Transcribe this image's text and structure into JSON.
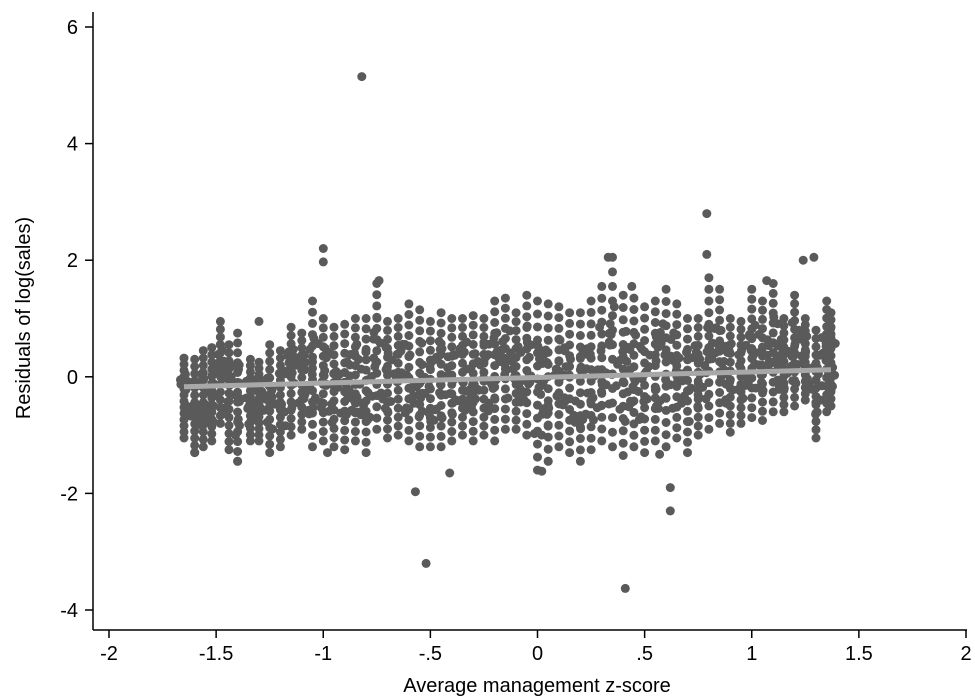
{
  "chart_data": {
    "type": "scatter",
    "title": "",
    "xlabel": "Average management z-score",
    "ylabel": "Residuals of log(sales)",
    "xlim": [
      -2,
      2
    ],
    "ylim": [
      -4,
      6
    ],
    "xticks": [
      {
        "value": -2,
        "label": "-2"
      },
      {
        "value": -1.5,
        "label": "-1.5"
      },
      {
        "value": -1,
        "label": "-1"
      },
      {
        "value": -0.5,
        "label": "-.5"
      },
      {
        "value": 0,
        "label": "0"
      },
      {
        "value": 0.5,
        "label": ".5"
      },
      {
        "value": 1,
        "label": "1"
      },
      {
        "value": 1.5,
        "label": "1.5"
      },
      {
        "value": 2,
        "label": "2"
      }
    ],
    "yticks": [
      {
        "value": -4,
        "label": "-4"
      },
      {
        "value": -2,
        "label": "-2"
      },
      {
        "value": 0,
        "label": "0"
      },
      {
        "value": 2,
        "label": "2"
      },
      {
        "value": 4,
        "label": "4"
      },
      {
        "value": 6,
        "label": "6"
      }
    ],
    "grid": false,
    "legend": "none",
    "colors": {
      "points": "#5a5a5a",
      "fit_line": "#a8a8a8",
      "axes": "#000000"
    },
    "series": [
      {
        "kind": "scatter",
        "points": [
          [
            -0.82,
            5.15
          ],
          [
            -0.57,
            -1.97
          ],
          [
            -0.52,
            -3.2
          ],
          [
            0.41,
            -3.63
          ],
          [
            0.79,
            2.8
          ],
          [
            0.62,
            -1.9
          ],
          [
            0.62,
            -2.3
          ],
          [
            -1.0,
            2.2
          ],
          [
            -1.0,
            1.97
          ],
          [
            0.33,
            2.05
          ],
          [
            1.29,
            2.05
          ],
          [
            1.24,
            2.0
          ],
          [
            0.79,
            2.1
          ],
          [
            -0.41,
            -1.65
          ],
          [
            0.02,
            -1.62
          ],
          [
            -1.4,
            -1.45
          ],
          [
            0.05,
            -1.45
          ],
          [
            -1.6,
            -1.3
          ],
          [
            0.57,
            -1.33
          ],
          [
            -0.98,
            -1.3
          ],
          [
            -1.3,
            0.95
          ],
          [
            1.07,
            1.65
          ],
          [
            -0.74,
            1.65
          ],
          [
            0.44,
            1.55
          ]
        ]
      },
      {
        "kind": "band",
        "columns": [
          [
            -1.65,
            -1.05,
            0.32
          ],
          [
            -1.6,
            -1.3,
            0.3
          ],
          [
            -1.56,
            -1.2,
            0.45
          ],
          [
            -1.52,
            -1.1,
            0.5
          ],
          [
            -1.48,
            -0.8,
            0.95
          ],
          [
            -1.44,
            -1.25,
            0.55
          ],
          [
            -1.4,
            -1.45,
            0.75
          ],
          [
            -1.34,
            -1.1,
            0.3
          ],
          [
            -1.3,
            -1.1,
            0.25
          ],
          [
            -1.25,
            -1.3,
            0.55
          ],
          [
            -1.2,
            -1.2,
            0.45
          ],
          [
            -1.15,
            -1.0,
            0.85
          ],
          [
            -1.1,
            -0.9,
            0.75
          ],
          [
            -1.05,
            -1.2,
            1.3
          ],
          [
            -1.0,
            -1.1,
            1.0
          ],
          [
            -0.95,
            -1.2,
            0.85
          ],
          [
            -0.9,
            -1.25,
            0.9
          ],
          [
            -0.85,
            -1.1,
            1.0
          ],
          [
            -0.8,
            -1.3,
            1.0
          ],
          [
            -0.75,
            -0.9,
            1.6
          ],
          [
            -0.7,
            -1.05,
            0.95
          ],
          [
            -0.65,
            -1.0,
            1.0
          ],
          [
            -0.6,
            -1.1,
            1.25
          ],
          [
            -0.55,
            -1.2,
            1.15
          ],
          [
            -0.5,
            -1.2,
            0.95
          ],
          [
            -0.45,
            -1.2,
            1.1
          ],
          [
            -0.4,
            -1.1,
            1.0
          ],
          [
            -0.35,
            -1.0,
            1.0
          ],
          [
            -0.3,
            -1.1,
            1.05
          ],
          [
            -0.25,
            -1.0,
            1.0
          ],
          [
            -0.2,
            -1.1,
            1.3
          ],
          [
            -0.15,
            -0.9,
            1.35
          ],
          [
            -0.1,
            -0.9,
            1.1
          ],
          [
            -0.05,
            -1.0,
            1.4
          ],
          [
            0.0,
            -1.6,
            1.3
          ],
          [
            0.05,
            -1.45,
            1.25
          ],
          [
            0.1,
            -1.2,
            1.2
          ],
          [
            0.15,
            -1.3,
            1.1
          ],
          [
            0.2,
            -1.45,
            1.1
          ],
          [
            0.25,
            -1.25,
            1.3
          ],
          [
            0.3,
            -1.1,
            1.55
          ],
          [
            0.35,
            -1.2,
            2.05
          ],
          [
            0.4,
            -1.35,
            1.4
          ],
          [
            0.45,
            -1.2,
            1.35
          ],
          [
            0.5,
            -1.3,
            1.2
          ],
          [
            0.55,
            -1.1,
            1.3
          ],
          [
            0.6,
            -1.2,
            1.5
          ],
          [
            0.65,
            -1.05,
            1.25
          ],
          [
            0.7,
            -1.3,
            1.0
          ],
          [
            0.75,
            -1.0,
            1.0
          ],
          [
            0.8,
            -0.9,
            1.7
          ],
          [
            0.85,
            -0.8,
            1.5
          ],
          [
            0.9,
            -0.95,
            1.0
          ],
          [
            0.95,
            -0.8,
            0.95
          ],
          [
            1.0,
            -0.7,
            1.5
          ],
          [
            1.05,
            -0.75,
            1.3
          ],
          [
            1.1,
            -0.6,
            1.6
          ],
          [
            1.15,
            -0.6,
            1.0
          ],
          [
            1.2,
            -0.5,
            1.4
          ],
          [
            1.25,
            -0.4,
            1.0
          ],
          [
            1.3,
            -1.05,
            0.8
          ],
          [
            1.35,
            -0.6,
            1.3
          ],
          [
            1.37,
            -0.5,
            1.1
          ]
        ]
      },
      {
        "kind": "fit_line",
        "x": [
          -1.65,
          1.37
        ],
        "y": [
          -0.17,
          0.12
        ]
      }
    ]
  }
}
